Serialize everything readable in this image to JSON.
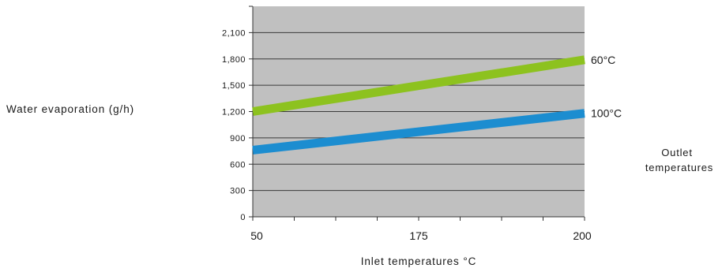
{
  "chart_data": {
    "type": "line",
    "title": "",
    "xlabel": "Inlet temperatures °C",
    "ylabel": "Water evaporation (g/h)",
    "legend_title_lines": [
      "Outlet",
      "temperatures"
    ],
    "xlim": [
      50,
      200
    ],
    "ylim": [
      0,
      2400
    ],
    "x_ticks": [
      50,
      175,
      200
    ],
    "y_ticks": [
      0,
      300,
      600,
      900,
      1200,
      1500,
      1800,
      2100
    ],
    "y_tick_labels": [
      "0",
      "300",
      "600",
      "900",
      "1,200",
      "1,500",
      "1,800",
      "2,100"
    ],
    "grid": "horizontal",
    "plot_background": "#c0c0c0",
    "series": [
      {
        "name": "60°C",
        "color": "#8dc21f",
        "x": [
          50,
          200
        ],
        "y": [
          1200,
          1790
        ]
      },
      {
        "name": "100°C",
        "color": "#1c8dd0",
        "x": [
          50,
          200
        ],
        "y": [
          760,
          1180
        ]
      }
    ]
  }
}
